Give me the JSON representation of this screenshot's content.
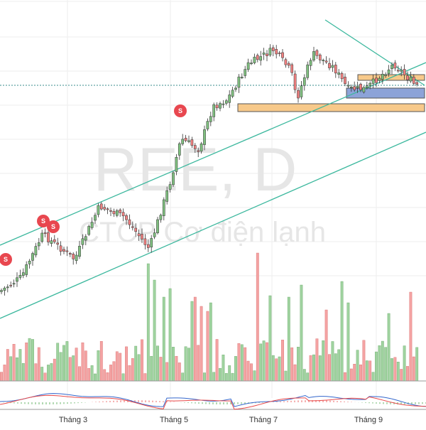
{
  "watermark": {
    "symbol": "REE, D",
    "company": "CTCP Cơ điện lạnh"
  },
  "colors": {
    "up": "#7fbf7f",
    "down": "#f08080",
    "up_vol": "#9fd39f",
    "down_vol": "#f4a3a3",
    "trend": "#3cb89e",
    "orange_zone": "#f7c98a",
    "blue_zone": "#8ca3d8",
    "grid": "#eeeeee",
    "signal": "#e8474f",
    "macd": "#3366cc",
    "signal_line": "#e84a4a"
  },
  "chart_data": {
    "type": "candlestick",
    "title": "",
    "x_tick_labels": [
      "Tháng 3",
      "Tháng 5",
      "Tháng 7",
      "Tháng 9"
    ],
    "signals": [
      "S",
      "S",
      "S",
      "S"
    ],
    "annotations": [
      "ascending channel",
      "descending trendline",
      "supply/demand zones"
    ],
    "grid": true
  }
}
